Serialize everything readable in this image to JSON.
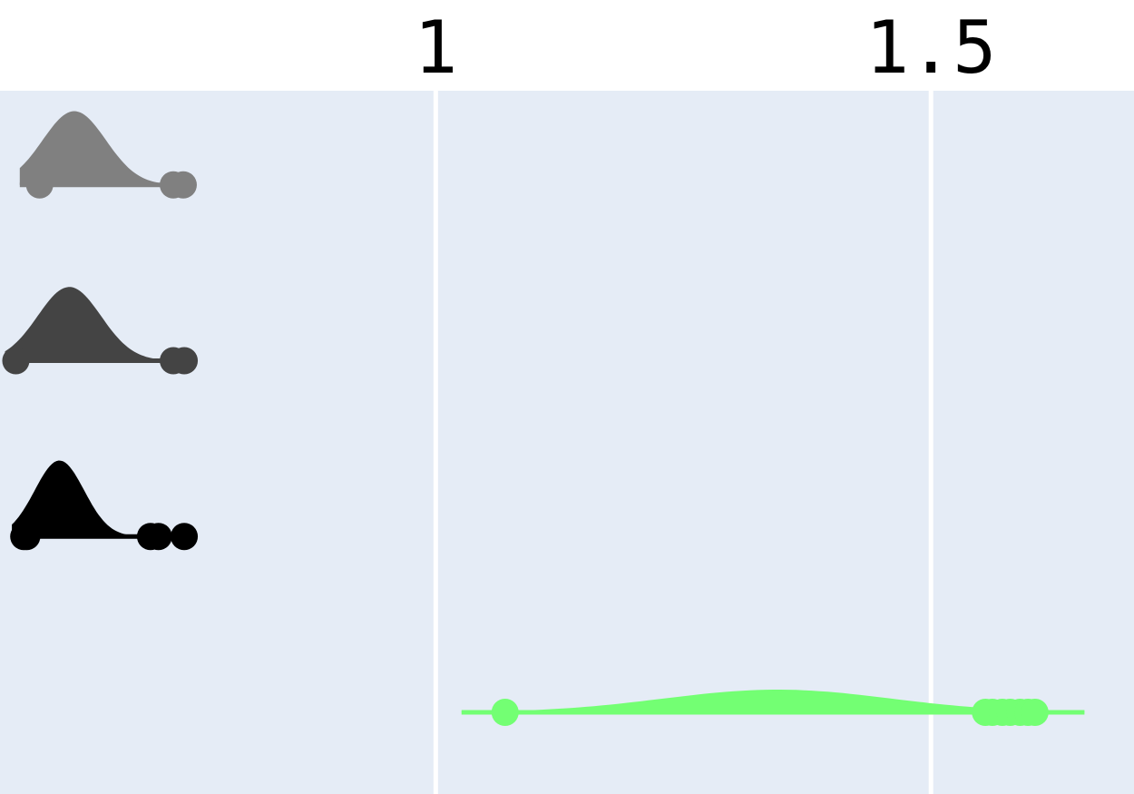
{
  "colors": {
    "plot_background": "#e5ecf6",
    "grid": "#ffffff",
    "paper": "#ffffff"
  },
  "chart_data": {
    "type": "violin",
    "orientation": "horizontal",
    "title": "",
    "xlabel": "",
    "ylabel": "",
    "x_axis": {
      "range": [
        0.56,
        1.705
      ],
      "tick_position": "top",
      "ticks": [
        {
          "value": 1,
          "label": "1"
        },
        {
          "value": 1.5,
          "label": "1.5"
        }
      ],
      "grid": true
    },
    "y_axis": {
      "tick_labels_shown": false,
      "grid": false
    },
    "side": "positive",
    "series": [
      {
        "color": "#808080",
        "density_peak": 0.635,
        "density_width": 0.032,
        "density_max": 0.65,
        "range": [
          0.58,
          0.755
        ],
        "outliers": [
          0.6,
          0.735,
          0.745
        ]
      },
      {
        "color": "#444444",
        "density_peak": 0.63,
        "density_width": 0.032,
        "density_max": 0.65,
        "range": [
          0.565,
          0.755
        ],
        "outliers": [
          0.576,
          0.735,
          0.746
        ]
      },
      {
        "color": "#000000",
        "density_peak": 0.62,
        "density_width": 0.025,
        "density_max": 0.67,
        "range": [
          0.572,
          0.752
        ],
        "outliers": [
          0.584,
          0.587,
          0.712,
          0.72,
          0.746
        ]
      },
      {
        "color": "#73ff73",
        "density_peak": 1.345,
        "density_width": 0.115,
        "density_max": 0.2,
        "range": [
          1.026,
          1.655
        ],
        "outliers": [
          1.07,
          1.555,
          1.562,
          1.572,
          1.58,
          1.59,
          1.598,
          1.605
        ]
      }
    ]
  }
}
